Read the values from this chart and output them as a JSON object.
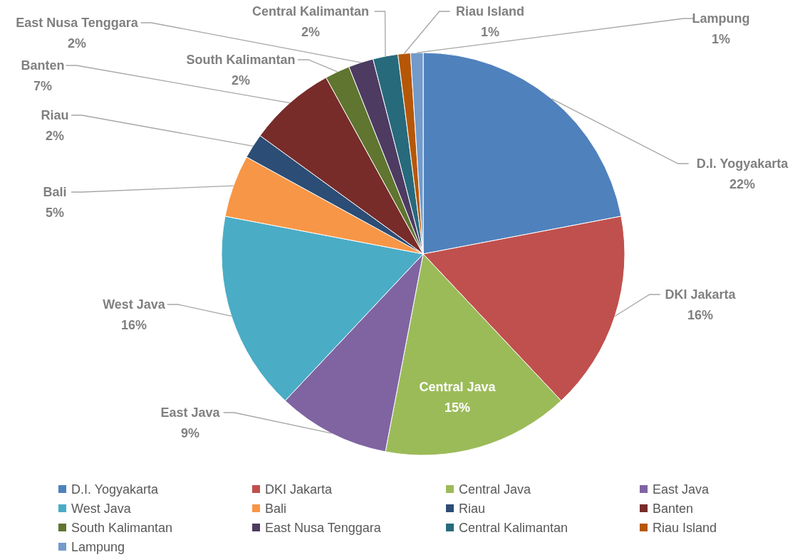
{
  "chart_data": {
    "type": "pie",
    "categories": [
      "D.I. Yogyakarta",
      "DKI Jakarta",
      "Central Java",
      "East Java",
      "West Java",
      "Bali",
      "Riau",
      "Banten",
      "South Kalimantan",
      "East Nusa Tenggara",
      "Central Kalimantan",
      "Riau Island",
      "Lampung"
    ],
    "values": [
      22,
      16,
      15,
      9,
      16,
      5,
      2,
      7,
      2,
      2,
      2,
      1,
      1
    ],
    "colors": [
      "#4f81bd",
      "#c0504d",
      "#9bbb59",
      "#8064a2",
      "#4bacc6",
      "#f79646",
      "#2c4d75",
      "#772c2a",
      "#5f7530",
      "#4d3b62",
      "#276a7c",
      "#b65708",
      "#729aca"
    ],
    "value_labels": [
      "22%",
      "16%",
      "15%",
      "9%",
      "16%",
      "5%",
      "2%",
      "7%",
      "2%",
      "2%",
      "2%",
      "1%",
      "1%"
    ],
    "legend": "bottom"
  }
}
